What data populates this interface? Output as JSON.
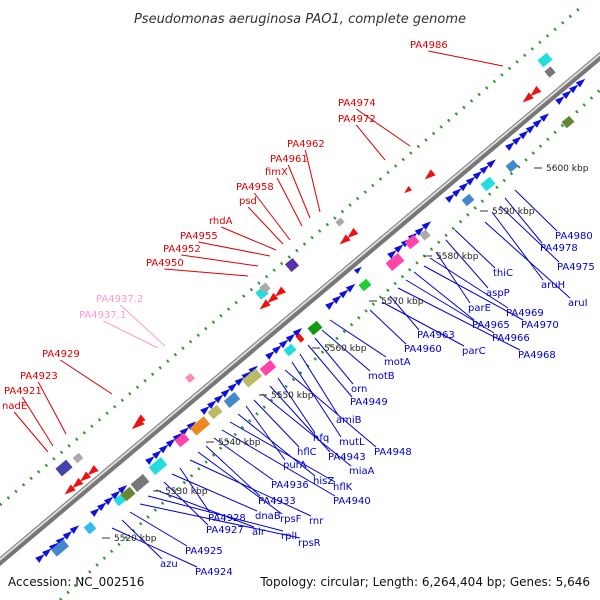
{
  "title": "Pseudomonas aeruginosa PAO1, complete genome",
  "accession": "Accession: NC_002516",
  "footer": "Topology: circular; Length: 6,264,404 bp; Genes: 5,646",
  "colors": {
    "background": "#ffffff",
    "upper_label": "#dd0000",
    "pseudo_label": "#ff99cc",
    "lower_label": "#0000cc",
    "backbone": "#888888",
    "dotted_track": "#339933"
  },
  "kbp_ticks": [
    "5520 kbp",
    "5530 kbp",
    "5540 kbp",
    "5550 kbp",
    "5560 kbp",
    "5570 kbp",
    "5580 kbp",
    "5590 kbp",
    "5600 kbp"
  ],
  "upper_labels": [
    {
      "text": "PA4986",
      "pseudo": false
    },
    {
      "text": "PA4974",
      "pseudo": false
    },
    {
      "text": "PA4972",
      "pseudo": false
    },
    {
      "text": "PA4962",
      "pseudo": false
    },
    {
      "text": "PA4961",
      "pseudo": false
    },
    {
      "text": "fimX",
      "pseudo": false
    },
    {
      "text": "PA4958",
      "pseudo": false
    },
    {
      "text": "psd",
      "pseudo": false
    },
    {
      "text": "rhdA",
      "pseudo": false
    },
    {
      "text": "PA4955",
      "pseudo": false
    },
    {
      "text": "PA4952",
      "pseudo": false
    },
    {
      "text": "PA4950",
      "pseudo": false
    },
    {
      "text": "PA4937.2",
      "pseudo": true
    },
    {
      "text": "PA4937.1",
      "pseudo": true
    },
    {
      "text": "PA4929",
      "pseudo": false
    },
    {
      "text": "PA4923",
      "pseudo": false
    },
    {
      "text": "PA4921",
      "pseudo": false
    },
    {
      "text": "nadE",
      "pseudo": false
    }
  ],
  "lower_labels": [
    {
      "text": "PA4980"
    },
    {
      "text": "PA4978"
    },
    {
      "text": "PA4975"
    },
    {
      "text": "aruH"
    },
    {
      "text": "aruI"
    },
    {
      "text": "thiC"
    },
    {
      "text": "aspP"
    },
    {
      "text": "parE"
    },
    {
      "text": "PA4969"
    },
    {
      "text": "PA4970"
    },
    {
      "text": "PA4965"
    },
    {
      "text": "PA4966"
    },
    {
      "text": "PA4968"
    },
    {
      "text": "PA4963"
    },
    {
      "text": "parC"
    },
    {
      "text": "PA4960"
    },
    {
      "text": "motA"
    },
    {
      "text": "motB"
    },
    {
      "text": "orn"
    },
    {
      "text": "PA4949"
    },
    {
      "text": "amiB"
    },
    {
      "text": "mutL"
    },
    {
      "text": "PA4948"
    },
    {
      "text": "hfq"
    },
    {
      "text": "PA4943"
    },
    {
      "text": "miaA"
    },
    {
      "text": "hflC"
    },
    {
      "text": "purA"
    },
    {
      "text": "hisZ"
    },
    {
      "text": "hflK"
    },
    {
      "text": "PA4940"
    },
    {
      "text": "PA4936"
    },
    {
      "text": "PA4933"
    },
    {
      "text": "rpsF"
    },
    {
      "text": "rnr"
    },
    {
      "text": "PA4928"
    },
    {
      "text": "dnaB"
    },
    {
      "text": "PA4927"
    },
    {
      "text": "alr"
    },
    {
      "text": "rplI"
    },
    {
      "text": "rpsR"
    },
    {
      "text": "PA4925"
    },
    {
      "text": "azu"
    },
    {
      "text": "PA4924"
    }
  ]
}
